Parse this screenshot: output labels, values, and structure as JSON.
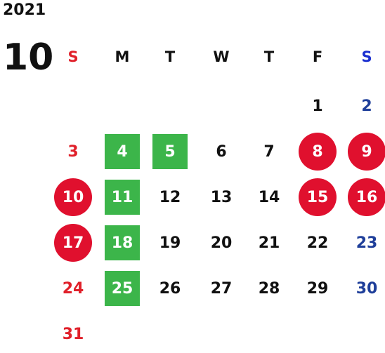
{
  "year": "2021",
  "month": "10",
  "colors": {
    "black": "#111111",
    "sunday": "#e0202a",
    "saturday": "#1f3f9a",
    "holiday_circle": "#e0102e",
    "green_square": "#3cb54a",
    "white": "#ffffff",
    "dow_sunday": "#e0202a",
    "dow_saturday": "#1a2fd0"
  },
  "weekdays": [
    "S",
    "M",
    "T",
    "W",
    "T",
    "F",
    "S"
  ],
  "weeks": [
    [
      null,
      null,
      null,
      null,
      null,
      {
        "d": "1"
      },
      {
        "d": "2"
      }
    ],
    [
      {
        "d": "3"
      },
      {
        "d": "4",
        "mark": "square"
      },
      {
        "d": "5",
        "mark": "square"
      },
      {
        "d": "6"
      },
      {
        "d": "7"
      },
      {
        "d": "8",
        "mark": "circle"
      },
      {
        "d": "9",
        "mark": "circle"
      }
    ],
    [
      {
        "d": "10",
        "mark": "circle"
      },
      {
        "d": "11",
        "mark": "square"
      },
      {
        "d": "12"
      },
      {
        "d": "13"
      },
      {
        "d": "14"
      },
      {
        "d": "15",
        "mark": "circle"
      },
      {
        "d": "16",
        "mark": "circle"
      }
    ],
    [
      {
        "d": "17",
        "mark": "circle"
      },
      {
        "d": "18",
        "mark": "square"
      },
      {
        "d": "19"
      },
      {
        "d": "20"
      },
      {
        "d": "21"
      },
      {
        "d": "22"
      },
      {
        "d": "23"
      }
    ],
    [
      {
        "d": "24"
      },
      {
        "d": "25",
        "mark": "square"
      },
      {
        "d": "26"
      },
      {
        "d": "27"
      },
      {
        "d": "28"
      },
      {
        "d": "29"
      },
      {
        "d": "30"
      }
    ],
    [
      {
        "d": "31"
      },
      null,
      null,
      null,
      null,
      null,
      null
    ]
  ]
}
